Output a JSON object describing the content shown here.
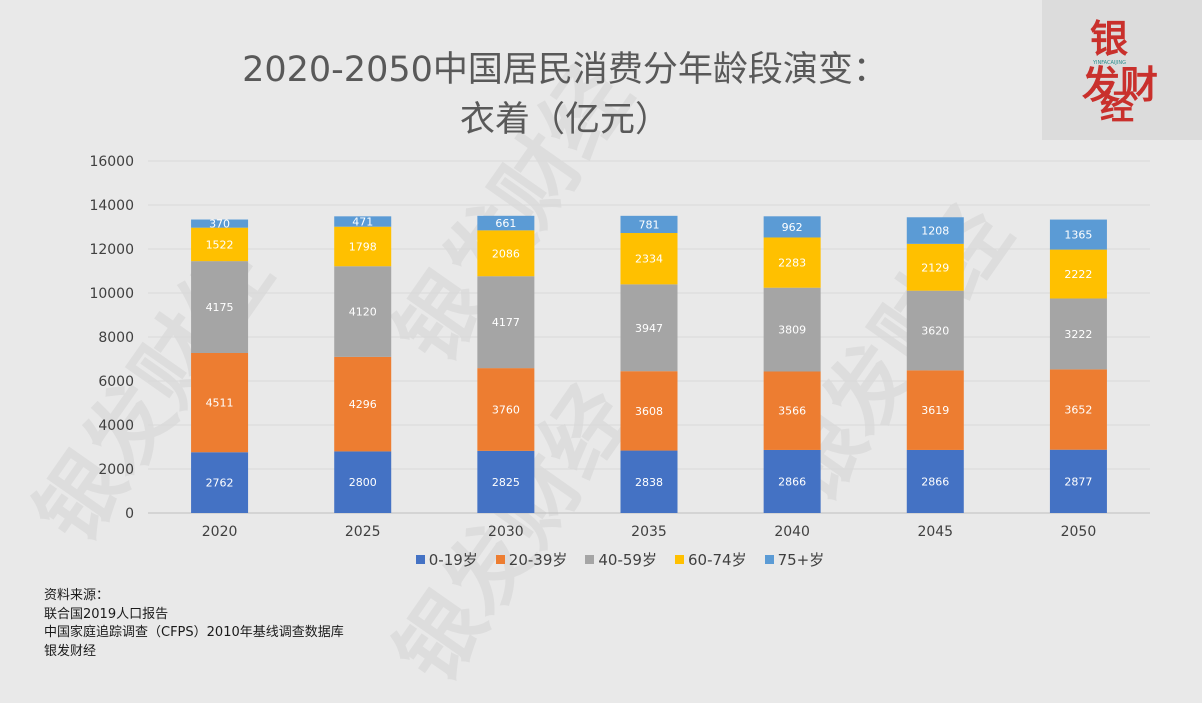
{
  "title_line1": "2020-2050中国居民消费分年龄段演变：",
  "title_line2": "衣着（亿元）",
  "logo": {
    "text": "银发财经",
    "sub": "YINFACAIJING"
  },
  "watermark_text": "银发财经",
  "source": {
    "heading": "资料来源：",
    "lines": [
      "联合国2019人口报告",
      "中国家庭追踪调查（CFPS）2010年基线调查数据库",
      "银发财经"
    ]
  },
  "colors": {
    "0-19": "#4472c4",
    "20-39": "#ed7d31",
    "40-59": "#a5a5a5",
    "60-74": "#ffc000",
    "75+": "#5b9bd5"
  },
  "chart_data": {
    "type": "bar",
    "stacked": true,
    "title": "2020-2050中国居民消费分年龄段演变：衣着（亿元）",
    "categories": [
      "2020",
      "2025",
      "2030",
      "2035",
      "2040",
      "2045",
      "2050"
    ],
    "ylim": [
      0,
      16000
    ],
    "yticks": [
      "0",
      "2000",
      "4000",
      "6000",
      "8000",
      "10000",
      "12000",
      "14000",
      "16000"
    ],
    "grid": true,
    "legend_position": "bottom",
    "series": [
      {
        "name": "0-19岁",
        "color": "#4472c4",
        "values": [
          2762,
          2800,
          2825,
          2838,
          2866,
          2866,
          2877
        ]
      },
      {
        "name": "20-39岁",
        "color": "#ed7d31",
        "values": [
          4511,
          4296,
          3760,
          3608,
          3566,
          3619,
          3652
        ]
      },
      {
        "name": "40-59岁",
        "color": "#a5a5a5",
        "values": [
          4175,
          4120,
          4177,
          3947,
          3809,
          3620,
          3222
        ]
      },
      {
        "name": "60-74岁",
        "color": "#ffc000",
        "values": [
          1522,
          1798,
          2086,
          2334,
          2283,
          2129,
          2222
        ]
      },
      {
        "name": "75+岁",
        "color": "#5b9bd5",
        "values": [
          370,
          471,
          661,
          781,
          962,
          1208,
          1365
        ]
      }
    ]
  }
}
